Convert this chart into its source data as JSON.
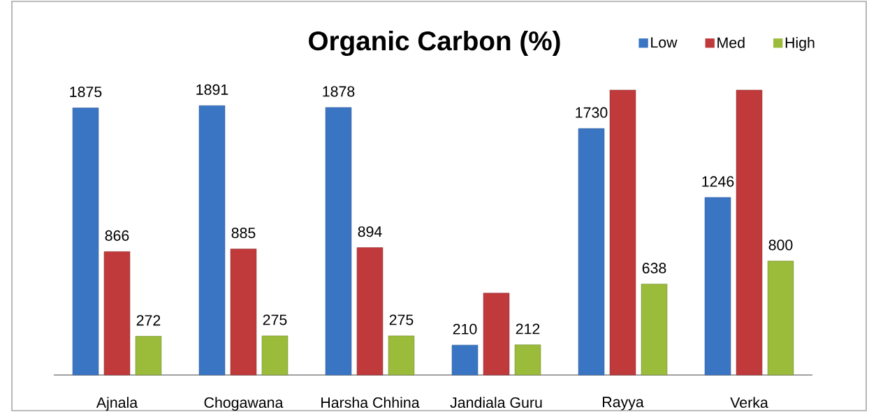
{
  "chart_data": {
    "type": "bar",
    "title": "Organic Carbon (%)",
    "categories": [
      "Ajnala",
      "Chogawana",
      "Harsha Chhina",
      "Jandiala Guru",
      "Rayya",
      "Verka"
    ],
    "series": [
      {
        "name": "Low",
        "color": "#3a75c4",
        "values": [
          1875,
          1891,
          1878,
          210,
          1730,
          1246
        ],
        "value_labels": [
          "1875",
          "1891",
          "1878",
          "210",
          "1730",
          "1246"
        ]
      },
      {
        "name": "Med",
        "color": "#c0393b",
        "values": [
          866,
          885,
          894,
          575,
          2000,
          2000
        ],
        "value_labels": [
          "866",
          "885",
          "894",
          null,
          null,
          null
        ]
      },
      {
        "name": "High",
        "color": "#9bbb3b",
        "values": [
          272,
          275,
          275,
          212,
          638,
          800
        ],
        "value_labels": [
          "272",
          "275",
          "275",
          "212",
          "638",
          "800"
        ]
      }
    ],
    "ylim": [
      0,
      2000
    ],
    "legend": "top right"
  }
}
